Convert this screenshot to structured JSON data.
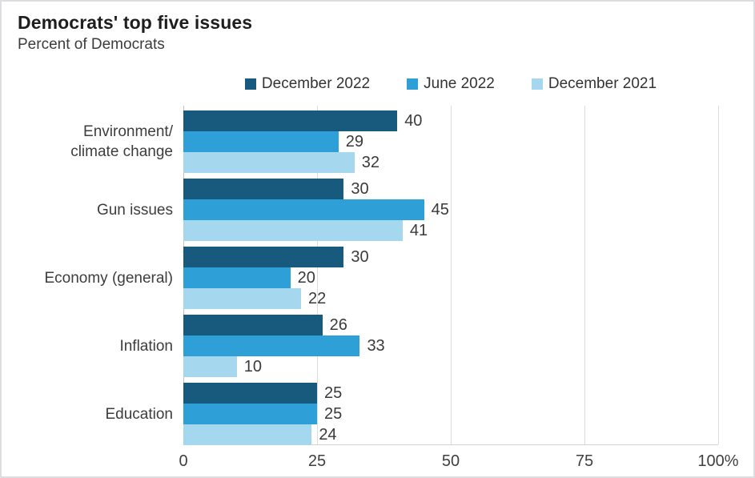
{
  "header": {
    "title": "Democrats' top five issues",
    "subtitle": "Percent of Democrats"
  },
  "chart_data": {
    "type": "bar",
    "orientation": "horizontal",
    "title": "Democrats' top five issues",
    "subtitle": "Percent of Democrats",
    "categories": [
      "Environment/\nclimate change",
      "Gun issues",
      "Economy (general)",
      "Inflation",
      "Education"
    ],
    "series": [
      {
        "name": "December 2022",
        "color": "#185a7d",
        "values": [
          40,
          30,
          30,
          26,
          25
        ]
      },
      {
        "name": "June 2022",
        "color": "#2f9fd8",
        "values": [
          29,
          45,
          20,
          33,
          25
        ]
      },
      {
        "name": "December 2021",
        "color": "#a5d7ef",
        "values": [
          32,
          41,
          22,
          10,
          24
        ]
      }
    ],
    "xlim": [
      0,
      100
    ],
    "xticks": [
      {
        "value": 0,
        "label": "0"
      },
      {
        "value": 25,
        "label": "25"
      },
      {
        "value": 50,
        "label": "50"
      },
      {
        "value": 75,
        "label": "75"
      },
      {
        "value": 100,
        "label": "100%"
      }
    ],
    "grid": true,
    "legend_position": "top",
    "value_labels": true,
    "colors": {
      "grid": "#dcdcdc",
      "axis": "#c2c2c2",
      "text": "#3a3a3a"
    }
  }
}
